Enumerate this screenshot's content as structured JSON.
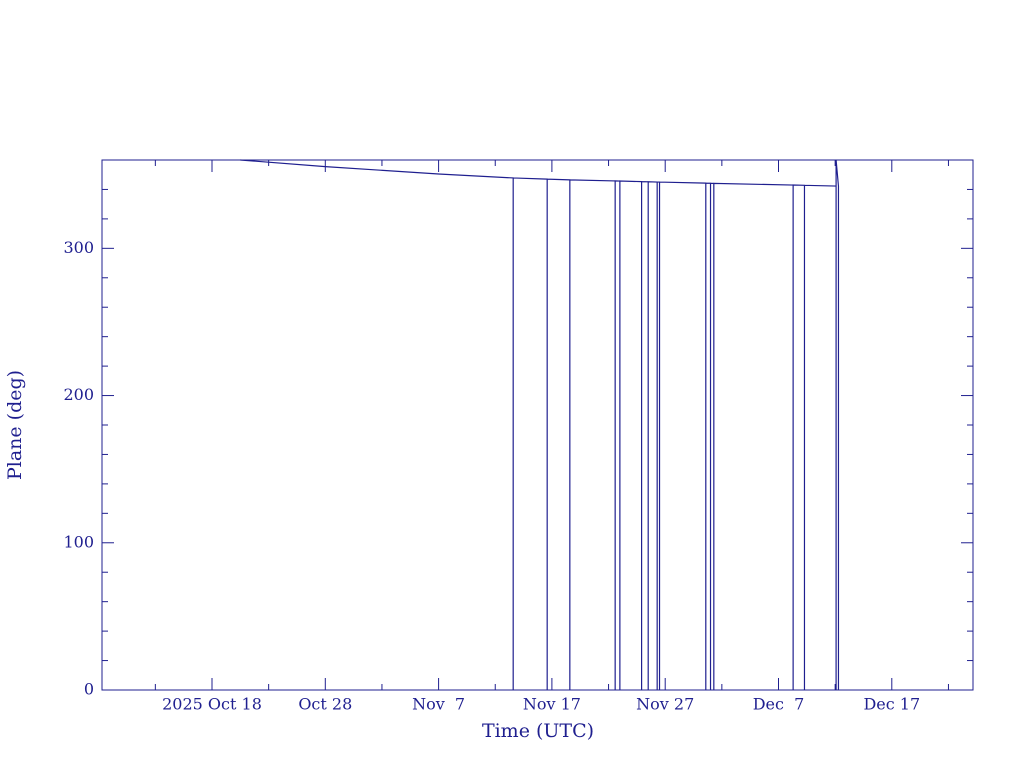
{
  "chart_data": {
    "type": "line",
    "xlabel": "Time (UTC)",
    "ylabel": "Plane (deg)",
    "color": "#1f1f8f",
    "x": [
      "2025-10-20T12:00",
      "2025-10-28T00:00",
      "2025-11-07T00:00",
      "2025-11-13T14:00",
      "2025-11-13T14:00",
      "2025-11-13T14:00",
      "2025-11-16T14:00",
      "2025-11-16T14:00",
      "2025-11-16T14:00",
      "2025-11-18T14:00",
      "2025-11-18T14:00",
      "2025-11-18T14:00",
      "2025-11-22T14:00",
      "2025-11-22T14:00",
      "2025-11-22T14:00",
      "2025-11-23T00:00",
      "2025-11-23T00:00",
      "2025-11-23T00:00",
      "2025-11-24T22:00",
      "2025-11-24T22:00",
      "2025-11-24T22:00",
      "2025-11-25T12:00",
      "2025-11-25T12:00",
      "2025-11-25T12:00",
      "2025-11-26T07:00",
      "2025-11-26T07:00",
      "2025-11-26T07:00",
      "2025-11-26T12:00",
      "2025-11-26T12:00",
      "2025-11-26T12:00",
      "2025-11-30T14:00",
      "2025-11-30T14:00",
      "2025-11-30T14:00",
      "2025-12-01T00:00",
      "2025-12-01T00:00",
      "2025-12-01T00:00",
      "2025-12-01T07:00",
      "2025-12-01T07:00",
      "2025-12-01T07:00",
      "2025-12-08T07:00",
      "2025-12-08T07:00",
      "2025-12-08T07:00",
      "2025-12-09T07:00",
      "2025-12-09T07:00",
      "2025-12-09T07:00",
      "2025-12-12T02:00",
      "2025-12-12T02:00",
      "2025-12-12T02:00",
      "2025-12-12T07:00",
      "2025-12-12T07:00",
      "2025-12-12T07:00"
    ],
    "values": [
      360,
      355.5,
      350.5,
      347.8,
      0,
      347.8,
      347.0,
      0,
      347.0,
      346.5,
      0,
      346.5,
      345.8,
      0,
      345.8,
      345.7,
      0,
      345.7,
      345.3,
      0,
      345.3,
      345.2,
      0,
      345.2,
      345.0,
      0,
      345.0,
      345.0,
      0,
      345.0,
      344.3,
      0,
      344.3,
      344.2,
      0,
      344.2,
      344.1,
      0,
      344.1,
      343.0,
      0,
      343.0,
      342.8,
      0,
      342.8,
      342.3,
      0,
      360,
      342.2,
      0,
      342.2
    ],
    "xlim": [
      "2025-10-08T07:00",
      "2025-12-24T04:00"
    ],
    "xticks": [
      {
        "value": "2025-10-18T00:00",
        "label": "2025 Oct 18"
      },
      {
        "value": "2025-10-28T00:00",
        "label": "Oct 28"
      },
      {
        "value": "2025-11-07T00:00",
        "label": "Nov  7"
      },
      {
        "value": "2025-11-17T00:00",
        "label": "Nov 17"
      },
      {
        "value": "2025-11-27T00:00",
        "label": "Nov 27"
      },
      {
        "value": "2025-12-07T00:00",
        "label": "Dec  7"
      },
      {
        "value": "2025-12-17T00:00",
        "label": "Dec 17"
      }
    ],
    "xminor": [
      "2025-10-13T00:00",
      "2025-10-23T00:00",
      "2025-11-02T00:00",
      "2025-11-12T00:00",
      "2025-11-22T00:00",
      "2025-12-02T00:00",
      "2025-12-12T00:00",
      "2025-12-22T00:00"
    ],
    "ylim": [
      0,
      360
    ],
    "yticks": [
      0,
      100,
      200,
      300
    ],
    "yminor": [
      20,
      40,
      60,
      80,
      120,
      140,
      160,
      180,
      220,
      240,
      260,
      280,
      320,
      340
    ]
  }
}
